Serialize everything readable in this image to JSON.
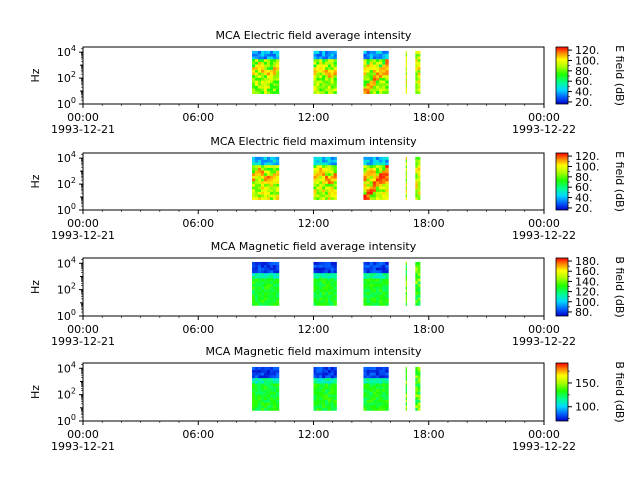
{
  "chart_data": [
    {
      "type": "heatmap",
      "title": "MCA  Electric field average intensity",
      "ylabel": "Hz",
      "y_ticks": [
        "10",
        "10",
        "10"
      ],
      "y_tick_exponents": [
        "0",
        "2",
        "4"
      ],
      "x_ticks": [
        "00:00",
        "06:00",
        "12:00",
        "18:00",
        "00:00"
      ],
      "x_dates": [
        "1993-12-21",
        "1993-12-22"
      ],
      "xlim_hours": [
        0,
        24
      ],
      "ylim_log10_hz": [
        0,
        4.4
      ],
      "colorbar_label": "E field (dB)",
      "colorbar_ticks": [
        20,
        40,
        60,
        80,
        100,
        120
      ],
      "colorbar_range": [
        16,
        126
      ],
      "color_scale": "rainbow",
      "data_intervals_hours": [
        [
          8.8,
          10.2
        ],
        [
          12.0,
          13.2
        ],
        [
          14.6,
          15.9
        ],
        [
          16.8,
          16.85
        ],
        [
          17.3,
          17.55
        ]
      ],
      "freq_range_log10_hz": [
        0.8,
        4.1
      ]
    },
    {
      "type": "heatmap",
      "title": "MCA  Electric field maximum intensity",
      "ylabel": "Hz",
      "y_ticks": [
        "10",
        "10",
        "10"
      ],
      "y_tick_exponents": [
        "0",
        "2",
        "4"
      ],
      "x_ticks": [
        "00:00",
        "06:00",
        "12:00",
        "18:00",
        "00:00"
      ],
      "x_dates": [
        "1993-12-21",
        "1993-12-22"
      ],
      "xlim_hours": [
        0,
        24
      ],
      "ylim_log10_hz": [
        0,
        4.4
      ],
      "colorbar_label": "E field (dB)",
      "colorbar_ticks": [
        20,
        40,
        60,
        80,
        100,
        120
      ],
      "colorbar_range": [
        16,
        126
      ],
      "color_scale": "rainbow",
      "data_intervals_hours": [
        [
          8.8,
          10.2
        ],
        [
          12.0,
          13.2
        ],
        [
          14.6,
          15.9
        ],
        [
          16.8,
          16.85
        ],
        [
          17.3,
          17.55
        ]
      ],
      "freq_range_log10_hz": [
        0.8,
        4.1
      ]
    },
    {
      "type": "heatmap",
      "title": "MCA  Magnetic field average intensity",
      "ylabel": "Hz",
      "y_ticks": [
        "10",
        "10",
        "10"
      ],
      "y_tick_exponents": [
        "0",
        "2",
        "4"
      ],
      "x_ticks": [
        "00:00",
        "06:00",
        "12:00",
        "18:00",
        "00:00"
      ],
      "x_dates": [
        "1993-12-21",
        "1993-12-22"
      ],
      "xlim_hours": [
        0,
        24
      ],
      "ylim_log10_hz": [
        0,
        4.4
      ],
      "colorbar_label": "B field (dB)",
      "colorbar_ticks": [
        80,
        100,
        120,
        140,
        160,
        180
      ],
      "colorbar_range": [
        72,
        186
      ],
      "color_scale": "rainbow",
      "data_intervals_hours": [
        [
          8.8,
          10.2
        ],
        [
          12.0,
          13.2
        ],
        [
          14.6,
          15.9
        ],
        [
          16.8,
          16.85
        ],
        [
          17.3,
          17.55
        ]
      ],
      "freq_range_log10_hz": [
        0.8,
        4.1
      ]
    },
    {
      "type": "heatmap",
      "title": "MCA  Magnetic field maximum intensity",
      "ylabel": "Hz",
      "y_ticks": [
        "10",
        "10",
        "10"
      ],
      "y_tick_exponents": [
        "0",
        "2",
        "4"
      ],
      "x_ticks": [
        "00:00",
        "06:00",
        "12:00",
        "18:00",
        "00:00"
      ],
      "x_dates": [
        "1993-12-21",
        "1993-12-22"
      ],
      "xlim_hours": [
        0,
        24
      ],
      "ylim_log10_hz": [
        0,
        4.4
      ],
      "colorbar_label": "B field (dB)",
      "colorbar_ticks": [
        100,
        150
      ],
      "colorbar_range": [
        70,
        192
      ],
      "color_scale": "rainbow",
      "data_intervals_hours": [
        [
          8.8,
          10.2
        ],
        [
          12.0,
          13.2
        ],
        [
          14.6,
          15.9
        ],
        [
          16.8,
          16.85
        ],
        [
          17.3,
          17.55
        ]
      ],
      "freq_range_log10_hz": [
        0.8,
        4.1
      ]
    }
  ]
}
